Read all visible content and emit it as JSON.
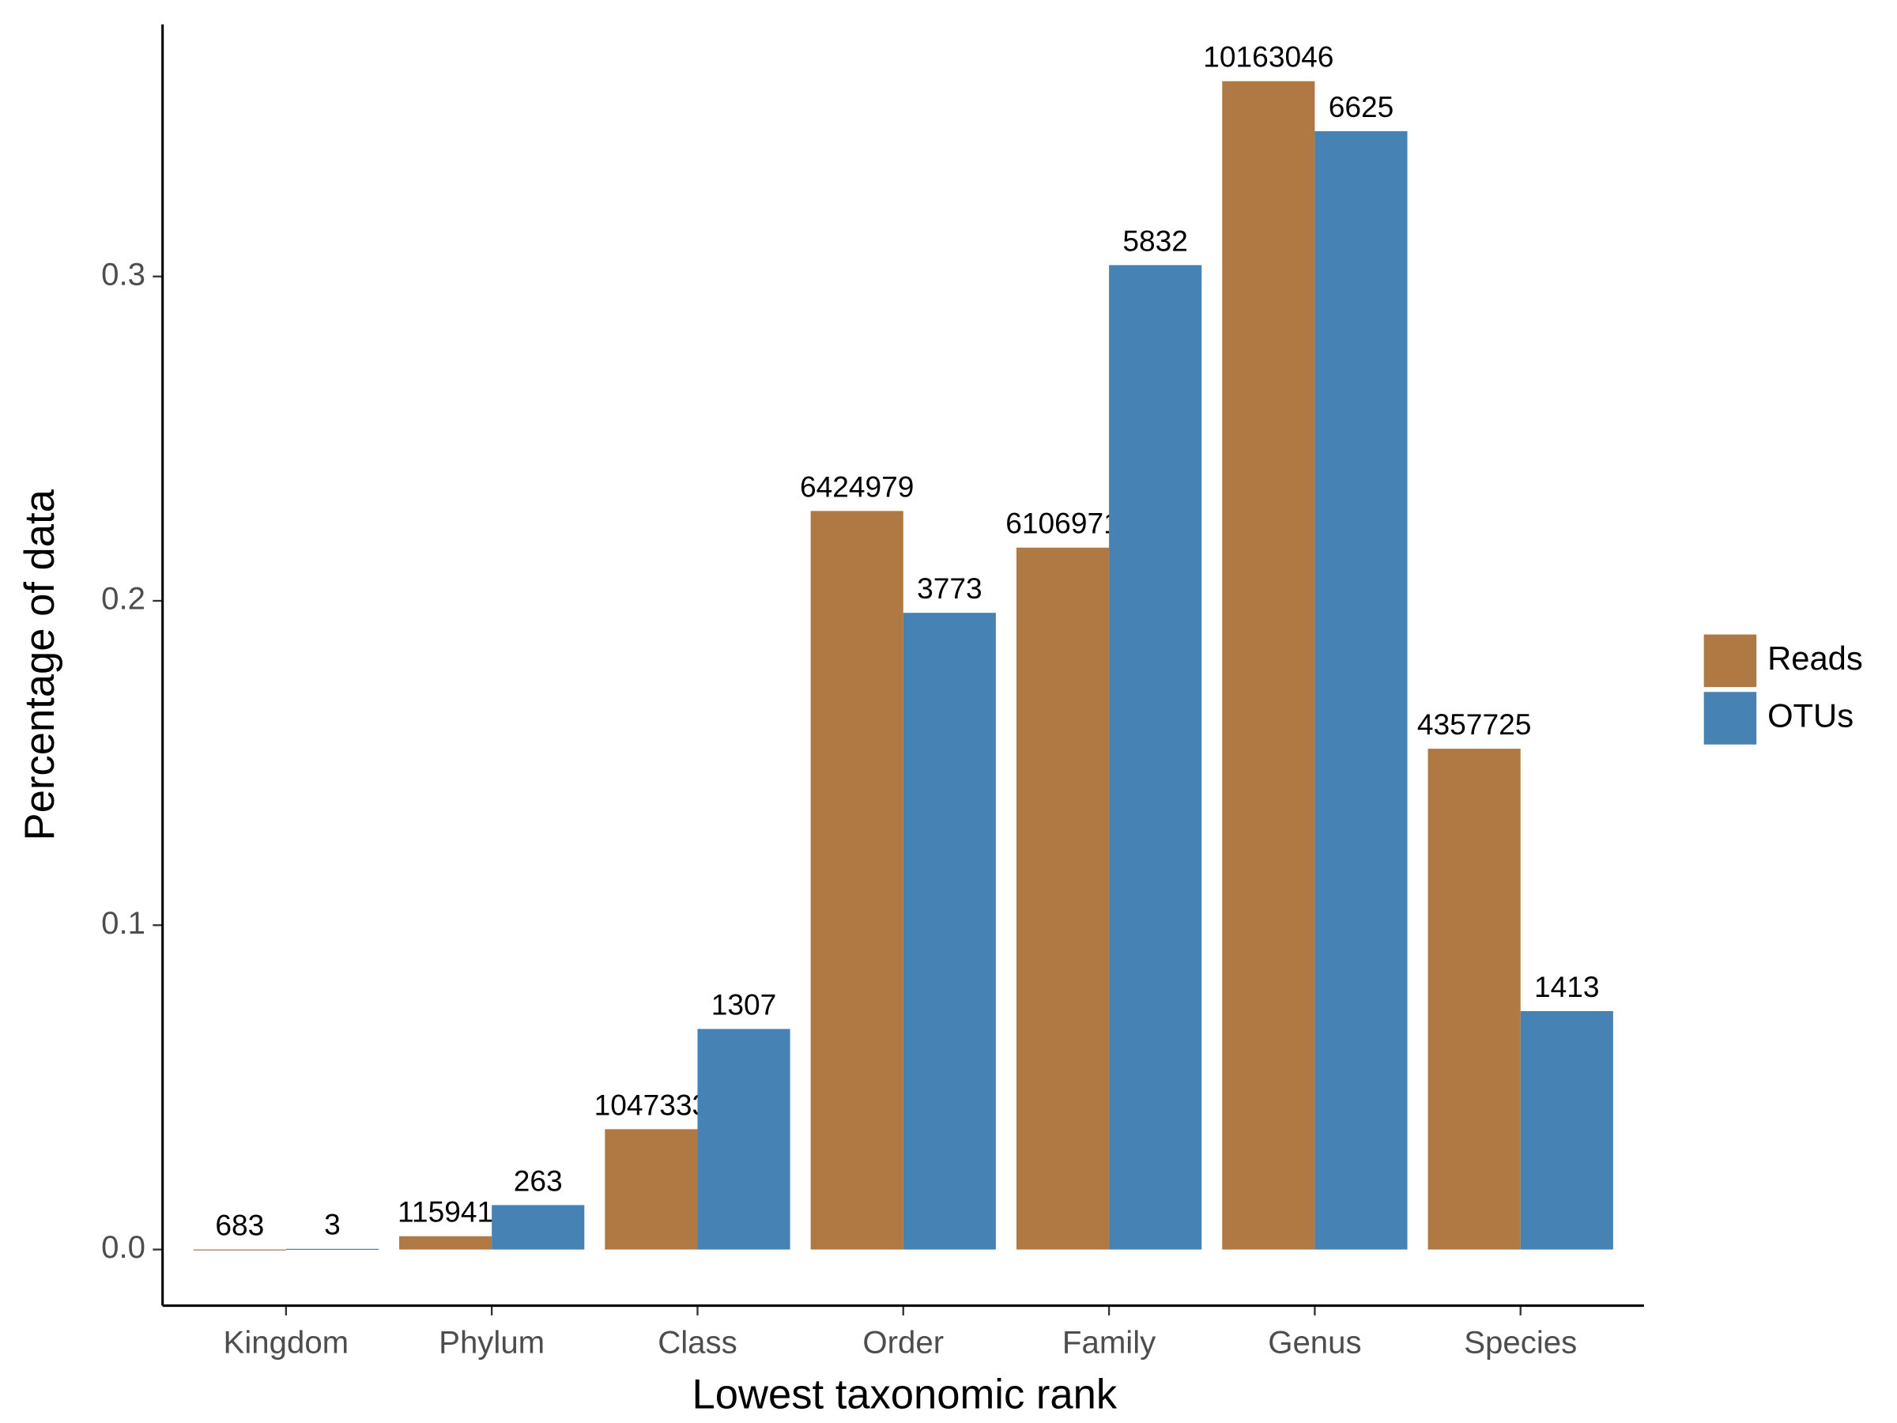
{
  "chart_data": {
    "type": "bar",
    "x_label": "Lowest taxonomic rank",
    "y_label": "Percentage of data",
    "categories": [
      "Kingdom",
      "Phylum",
      "Class",
      "Order",
      "Family",
      "Genus",
      "Species"
    ],
    "series": [
      {
        "name": "Reads",
        "color": "#b07843",
        "values": [
          2e-05,
          0.0041,
          0.0371,
          0.2277,
          0.2164,
          0.3602,
          0.1544
        ],
        "counts": [
          683,
          115941,
          1047333,
          6424979,
          6106971,
          10163046,
          4357725
        ]
      },
      {
        "name": "OTUs",
        "color": "#4682b4",
        "values": [
          0.0002,
          0.0137,
          0.068,
          0.1963,
          0.3035,
          0.3448,
          0.0735
        ],
        "counts": [
          3,
          263,
          1307,
          3773,
          5832,
          6625,
          1413
        ]
      }
    ],
    "ylim": [
      -0.0173,
      0.3777
    ],
    "yticks": [
      {
        "value": 0,
        "label": "0.0"
      },
      0.1,
      0.2,
      0.3
    ],
    "grid": false,
    "legend": "right"
  }
}
